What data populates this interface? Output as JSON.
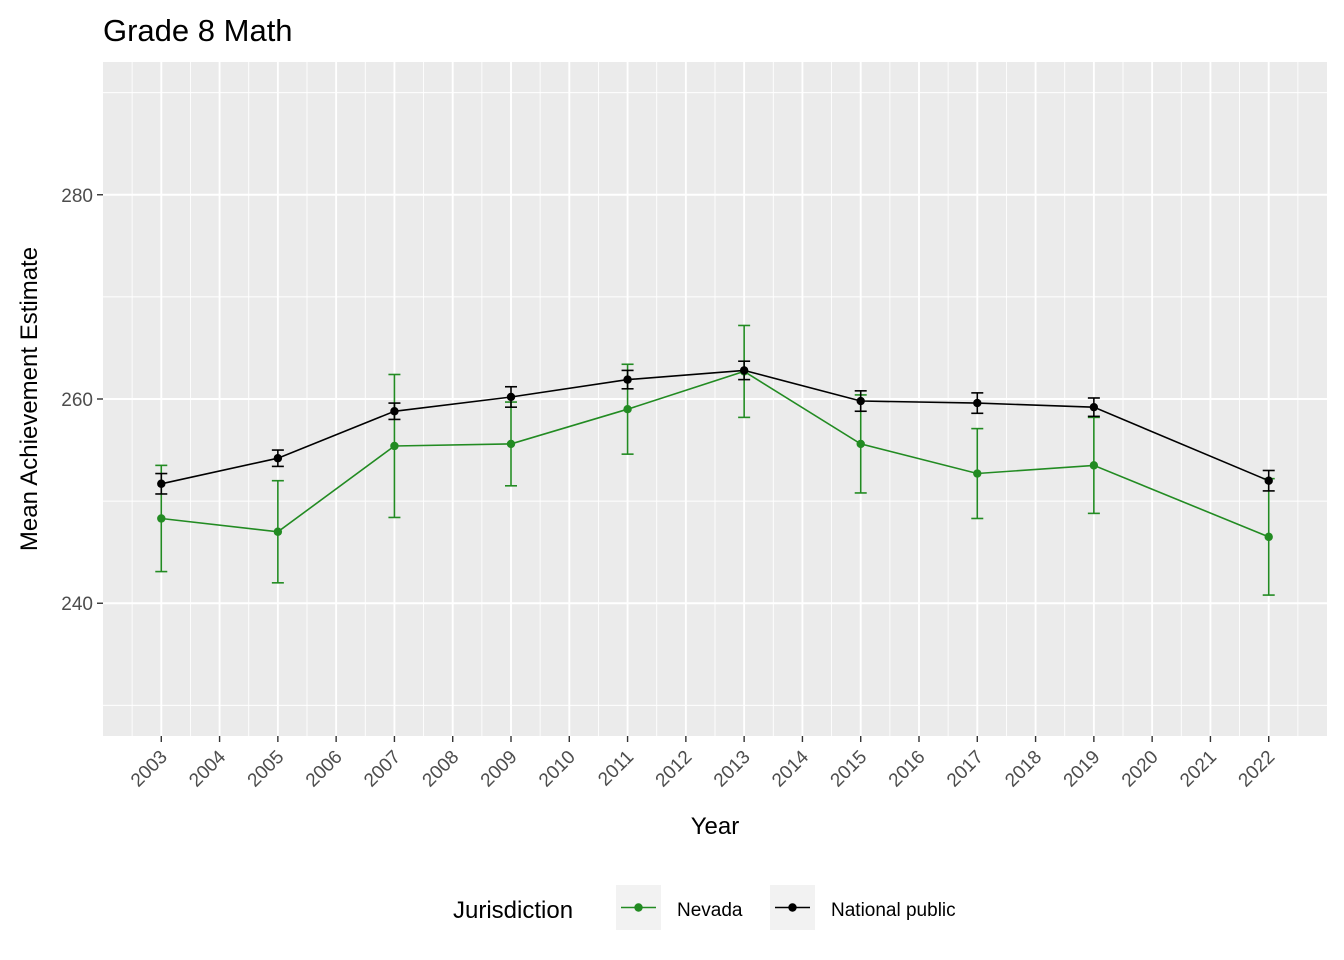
{
  "chart_data": {
    "type": "line",
    "title": "Grade 8 Math",
    "xlabel": "Year",
    "ylabel": "Mean Achievement Estimate",
    "x_ticks": [
      "2003",
      "2004",
      "2005",
      "2006",
      "2007",
      "2008",
      "2009",
      "2010",
      "2011",
      "2012",
      "2013",
      "2014",
      "2015",
      "2016",
      "2017",
      "2018",
      "2019",
      "2020",
      "2021",
      "2022"
    ],
    "y_ticks": [
      240,
      260,
      280
    ],
    "ylim": [
      227,
      293
    ],
    "xlim": [
      2002,
      2023
    ],
    "grid": true,
    "legend": {
      "title": "Jurisdiction",
      "position": "bottom"
    },
    "series": [
      {
        "name": "Nevada",
        "color": "#228b22",
        "points": [
          {
            "x": 2003,
            "y": 248.3,
            "lo": 243.1,
            "hi": 253.5
          },
          {
            "x": 2005,
            "y": 247.0,
            "lo": 242.0,
            "hi": 252.0
          },
          {
            "x": 2007,
            "y": 255.4,
            "lo": 248.4,
            "hi": 262.4
          },
          {
            "x": 2009,
            "y": 255.6,
            "lo": 251.5,
            "hi": 259.7
          },
          {
            "x": 2011,
            "y": 259.0,
            "lo": 254.6,
            "hi": 263.4
          },
          {
            "x": 2013,
            "y": 262.7,
            "lo": 258.2,
            "hi": 267.2
          },
          {
            "x": 2015,
            "y": 255.6,
            "lo": 250.8,
            "hi": 260.4
          },
          {
            "x": 2017,
            "y": 252.7,
            "lo": 248.3,
            "hi": 257.1
          },
          {
            "x": 2019,
            "y": 253.5,
            "lo": 248.8,
            "hi": 258.2
          },
          {
            "x": 2022,
            "y": 246.5,
            "lo": 240.8,
            "hi": 252.2
          }
        ]
      },
      {
        "name": "National public",
        "color": "#000000",
        "points": [
          {
            "x": 2003,
            "y": 251.7,
            "lo": 250.7,
            "hi": 252.7
          },
          {
            "x": 2005,
            "y": 254.2,
            "lo": 253.4,
            "hi": 255.0
          },
          {
            "x": 2007,
            "y": 258.8,
            "lo": 258.0,
            "hi": 259.6
          },
          {
            "x": 2009,
            "y": 260.2,
            "lo": 259.2,
            "hi": 261.2
          },
          {
            "x": 2011,
            "y": 261.9,
            "lo": 261.0,
            "hi": 262.8
          },
          {
            "x": 2013,
            "y": 262.8,
            "lo": 261.9,
            "hi": 263.7
          },
          {
            "x": 2015,
            "y": 259.8,
            "lo": 258.8,
            "hi": 260.8
          },
          {
            "x": 2017,
            "y": 259.6,
            "lo": 258.6,
            "hi": 260.6
          },
          {
            "x": 2019,
            "y": 259.2,
            "lo": 258.3,
            "hi": 260.1
          },
          {
            "x": 2022,
            "y": 252.0,
            "lo": 251.0,
            "hi": 253.0
          }
        ]
      }
    ]
  }
}
